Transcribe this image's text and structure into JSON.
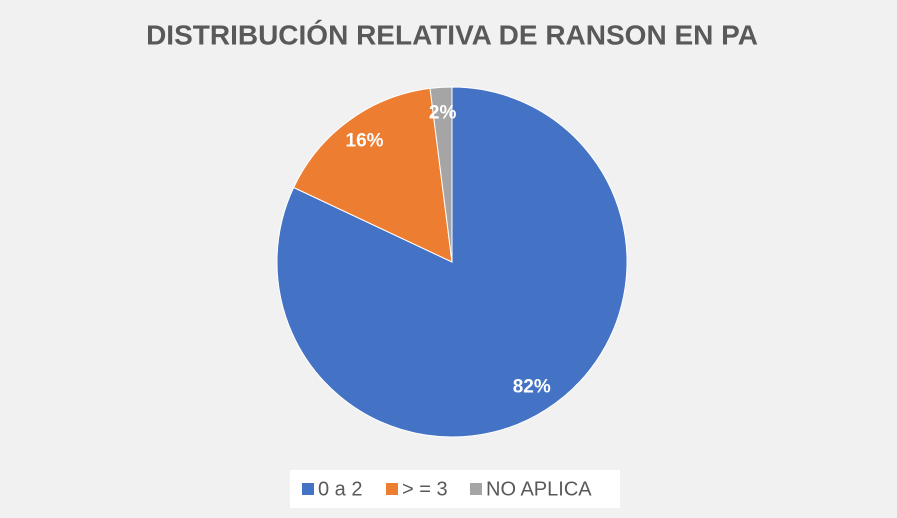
{
  "chart_data": {
    "type": "pie",
    "title": "DISTRIBUCIÓN RELATIVA DE RANSON EN PA",
    "categories": [
      "0 a 2",
      "> = 3",
      "NO APLICA"
    ],
    "values": [
      82,
      16,
      2
    ],
    "value_labels": [
      "82%",
      "16%",
      "2%"
    ],
    "colors": [
      "#4472c4",
      "#ed7d31",
      "#a5a5a5"
    ]
  }
}
